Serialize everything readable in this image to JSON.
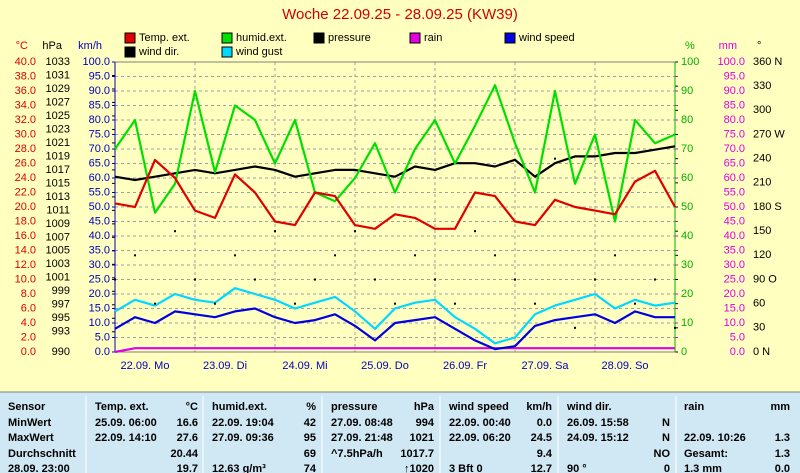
{
  "chart_data": {
    "type": "line",
    "title": "Woche 22.09.25 - 28.09.25 (KW39)",
    "xlim": [
      0,
      7
    ],
    "xticks": [
      {
        "value": 0,
        "label": "22.09.  Mo"
      },
      {
        "value": 1,
        "label": "23.09.  Di"
      },
      {
        "value": 2,
        "label": "24.09.  Mi"
      },
      {
        "value": 3,
        "label": "25.09.  Do"
      },
      {
        "value": 4,
        "label": "26.09.  Fr"
      },
      {
        "value": 5,
        "label": "27.09.  Sa"
      },
      {
        "value": 6,
        "label": "28.09.  So"
      }
    ],
    "x": [
      0,
      0.25,
      0.5,
      0.75,
      1,
      1.25,
      1.5,
      1.75,
      2,
      2.25,
      2.5,
      2.75,
      3,
      3.25,
      3.5,
      3.75,
      4,
      4.25,
      4.5,
      4.75,
      5,
      5.25,
      5.5,
      5.75,
      6,
      6.25,
      6.5,
      6.75,
      7
    ],
    "grid": true,
    "axes": [
      {
        "label": "°C",
        "color": "#e00000",
        "side": "left",
        "ylim": [
          0,
          40
        ],
        "yticks": [
          {
            "value": 0,
            "label": "0.0"
          },
          {
            "value": 2,
            "label": "2.0"
          },
          {
            "value": 4,
            "label": "4.0"
          },
          {
            "value": 6,
            "label": "6.0"
          },
          {
            "value": 8,
            "label": "8.0"
          },
          {
            "value": 10,
            "label": "10.0"
          },
          {
            "value": 12,
            "label": "12.0"
          },
          {
            "value": 14,
            "label": "14.0"
          },
          {
            "value": 16,
            "label": "16.0"
          },
          {
            "value": 18,
            "label": "18.0"
          },
          {
            "value": 20,
            "label": "20.0"
          },
          {
            "value": 22,
            "label": "22.0"
          },
          {
            "value": 24,
            "label": "24.0"
          },
          {
            "value": 26,
            "label": "26.0"
          },
          {
            "value": 28,
            "label": "28.0"
          },
          {
            "value": 30,
            "label": "30.0"
          },
          {
            "value": 32,
            "label": "32.0"
          },
          {
            "value": 34,
            "label": "34.0"
          },
          {
            "value": 36,
            "label": "36.0"
          },
          {
            "value": 38,
            "label": "38.0"
          },
          {
            "value": 40,
            "label": "40.0"
          }
        ]
      },
      {
        "label": "hPa",
        "color": "#000000",
        "side": "left",
        "ylim": [
          990,
          1033
        ],
        "yticks": [
          990,
          993,
          995,
          997,
          999,
          1001,
          1003,
          1005,
          1007,
          1009,
          1011,
          1013,
          1015,
          1017,
          1019,
          1021,
          1023,
          1025,
          1027,
          1029,
          1031,
          1033
        ]
      },
      {
        "label": "km/h",
        "color": "#0000c0",
        "side": "left",
        "ylim": [
          0,
          100
        ],
        "yticks": [
          {
            "value": 0,
            "label": "0.0"
          },
          {
            "value": 5,
            "label": "5.0"
          },
          {
            "value": 10,
            "label": "10.0"
          },
          {
            "value": 15,
            "label": "15.0"
          },
          {
            "value": 20,
            "label": "20.0"
          },
          {
            "value": 25,
            "label": "25.0"
          },
          {
            "value": 30,
            "label": "30.0"
          },
          {
            "value": 35,
            "label": "35.0"
          },
          {
            "value": 40,
            "label": "40.0"
          },
          {
            "value": 45,
            "label": "45.0"
          },
          {
            "value": 50,
            "label": "50.0"
          },
          {
            "value": 55,
            "label": "55.0"
          },
          {
            "value": 60,
            "label": "60.0"
          },
          {
            "value": 65,
            "label": "65.0"
          },
          {
            "value": 70,
            "label": "70.0"
          },
          {
            "value": 75,
            "label": "75.0"
          },
          {
            "value": 80,
            "label": "80.0"
          },
          {
            "value": 85,
            "label": "85.0"
          },
          {
            "value": 90,
            "label": "90.0"
          },
          {
            "value": 95,
            "label": "95.0"
          },
          {
            "value": 100,
            "label": "100.0"
          }
        ]
      },
      {
        "label": "%",
        "color": "#00b000",
        "side": "right",
        "ylim": [
          0,
          100
        ],
        "yticks": [
          0,
          10,
          20,
          30,
          40,
          50,
          60,
          70,
          80,
          90,
          100
        ]
      },
      {
        "label": "mm",
        "color": "#e000e0",
        "side": "right",
        "ylim": [
          0,
          100
        ],
        "yticks": [
          {
            "value": 0,
            "label": "0.0"
          },
          {
            "value": 5,
            "label": "5.0"
          },
          {
            "value": 10,
            "label": "10.0"
          },
          {
            "value": 15,
            "label": "15.0"
          },
          {
            "value": 20,
            "label": "20.0"
          },
          {
            "value": 25,
            "label": "25.0"
          },
          {
            "value": 30,
            "label": "30.0"
          },
          {
            "value": 35,
            "label": "35.0"
          },
          {
            "value": 40,
            "label": "40.0"
          },
          {
            "value": 45,
            "label": "45.0"
          },
          {
            "value": 50,
            "label": "50.0"
          },
          {
            "value": 55,
            "label": "55.0"
          },
          {
            "value": 60,
            "label": "60.0"
          },
          {
            "value": 65,
            "label": "65.0"
          },
          {
            "value": 70,
            "label": "70.0"
          },
          {
            "value": 75,
            "label": "75.0"
          },
          {
            "value": 80,
            "label": "80.0"
          },
          {
            "value": 85,
            "label": "85.0"
          },
          {
            "value": 90,
            "label": "90.0"
          },
          {
            "value": 95,
            "label": "95.0"
          },
          {
            "value": 100,
            "label": "100.0"
          }
        ]
      },
      {
        "label": "°",
        "color": "#000000",
        "side": "right",
        "ylim": [
          0,
          360
        ],
        "yticks": [
          {
            "value": 0,
            "label": "0  N"
          },
          30,
          60,
          {
            "value": 90,
            "label": "90  O"
          },
          120,
          150,
          {
            "value": 180,
            "label": "180  S"
          },
          210,
          240,
          {
            "value": 270,
            "label": "270  W"
          },
          300,
          330,
          {
            "value": 360,
            "label": "360  N"
          }
        ]
      }
    ],
    "series": [
      {
        "name": "Temp. ext.",
        "color": "#e00000",
        "axis": 0,
        "style": "line",
        "values": [
          20.5,
          20,
          26.5,
          24,
          19.5,
          18.5,
          24.5,
          22,
          18,
          17.5,
          22,
          21.5,
          17.5,
          17,
          19,
          18.5,
          17,
          17,
          22,
          21.5,
          18,
          17.5,
          21,
          20,
          19.5,
          19,
          23.5,
          25,
          20
        ]
      },
      {
        "name": "humid.ext.",
        "color": "#00e000",
        "axis": 3,
        "style": "line",
        "values": [
          70,
          80,
          48,
          58,
          90,
          62,
          85,
          80,
          65,
          80,
          55,
          52,
          60,
          72,
          55,
          70,
          80,
          65,
          78,
          92,
          72,
          55,
          90,
          58,
          75,
          45,
          80,
          72,
          75
        ]
      },
      {
        "name": "pressure",
        "color": "#000000",
        "axis": 1,
        "style": "line",
        "values": [
          1016,
          1015.5,
          1016,
          1016.5,
          1017,
          1016.5,
          1017,
          1017.5,
          1017,
          1016,
          1016.5,
          1017,
          1017,
          1016.5,
          1016,
          1017.5,
          1017,
          1018,
          1018,
          1017.5,
          1018.5,
          1016,
          1018,
          1019,
          1019,
          1019.5,
          1019.5,
          1020,
          1020.5
        ]
      },
      {
        "name": "rain",
        "color": "#e000e0",
        "axis": 4,
        "style": "line",
        "values": [
          0,
          1.3,
          1.3,
          1.3,
          1.3,
          1.3,
          1.3,
          1.3,
          1.3,
          1.3,
          1.3,
          1.3,
          1.3,
          1.3,
          1.3,
          1.3,
          1.3,
          1.3,
          1.3,
          1.3,
          1.3,
          1.3,
          1.3,
          1.3,
          1.3,
          1.3,
          1.3,
          1.3,
          1.3
        ]
      },
      {
        "name": "wind speed",
        "color": "#0000e0",
        "axis": 2,
        "style": "line",
        "values": [
          8,
          12,
          10,
          14,
          13,
          12,
          14,
          15,
          12,
          10,
          11,
          13,
          9,
          4,
          10,
          11,
          12,
          8,
          4,
          1,
          2,
          9,
          11,
          12,
          13,
          10,
          14,
          12,
          12
        ]
      },
      {
        "name": "wind dir.",
        "color": "#000000",
        "axis": 5,
        "style": "dots",
        "values": [
          90,
          120,
          60,
          150,
          90,
          60,
          120,
          90,
          150,
          60,
          90,
          120,
          150,
          90,
          60,
          120,
          90,
          60,
          150,
          120,
          90,
          60,
          240,
          30,
          90,
          120,
          60,
          90,
          30
        ]
      },
      {
        "name": "wind gust",
        "color": "#00d8ff",
        "axis": 2,
        "style": "line",
        "values": [
          14,
          18,
          16,
          20,
          18,
          17,
          22,
          20,
          18,
          15,
          17,
          19,
          14,
          8,
          15,
          17,
          18,
          12,
          8,
          3,
          5,
          13,
          16,
          18,
          20,
          15,
          18,
          16,
          17
        ]
      }
    ]
  },
  "table": {
    "header": [
      "Sensor",
      "Temp. ext.",
      "°C",
      "humid.ext.",
      "%",
      "pressure",
      "hPa",
      "wind speed",
      "km/h",
      "wind dir.",
      null,
      "rain",
      "mm"
    ],
    "rows": [
      [
        "MinWert",
        "25.09.  06:00",
        "16.6",
        "22.09.  19:04",
        "42",
        "27.09.  08:48",
        "994",
        "22.09.  00:40",
        "0.0",
        "26.09.  15:58",
        "N",
        null,
        null
      ],
      [
        "MaxWert",
        "22.09.  14:10",
        "27.6",
        "27.09.  09:36",
        "95",
        "27.09.  21:48",
        "1021",
        "22.09.  06:20",
        "24.5",
        "24.09.  15:12",
        "N",
        "22.09.  10:26",
        "1.3"
      ],
      [
        "Durchschnitt",
        null,
        "20.44",
        null,
        "69",
        "^7.5hPa/h",
        "1017.7",
        null,
        "9.4",
        null,
        "NO",
        "Gesamt:",
        "1.3"
      ],
      [
        "28.09.  23:00",
        null,
        "19.7",
        "12.63 g/m³",
        "74",
        null,
        "↑1020",
        "3 Bft 0",
        "12.7",
        "90 °",
        "0",
        "1.3 mm",
        "0.0"
      ]
    ]
  }
}
